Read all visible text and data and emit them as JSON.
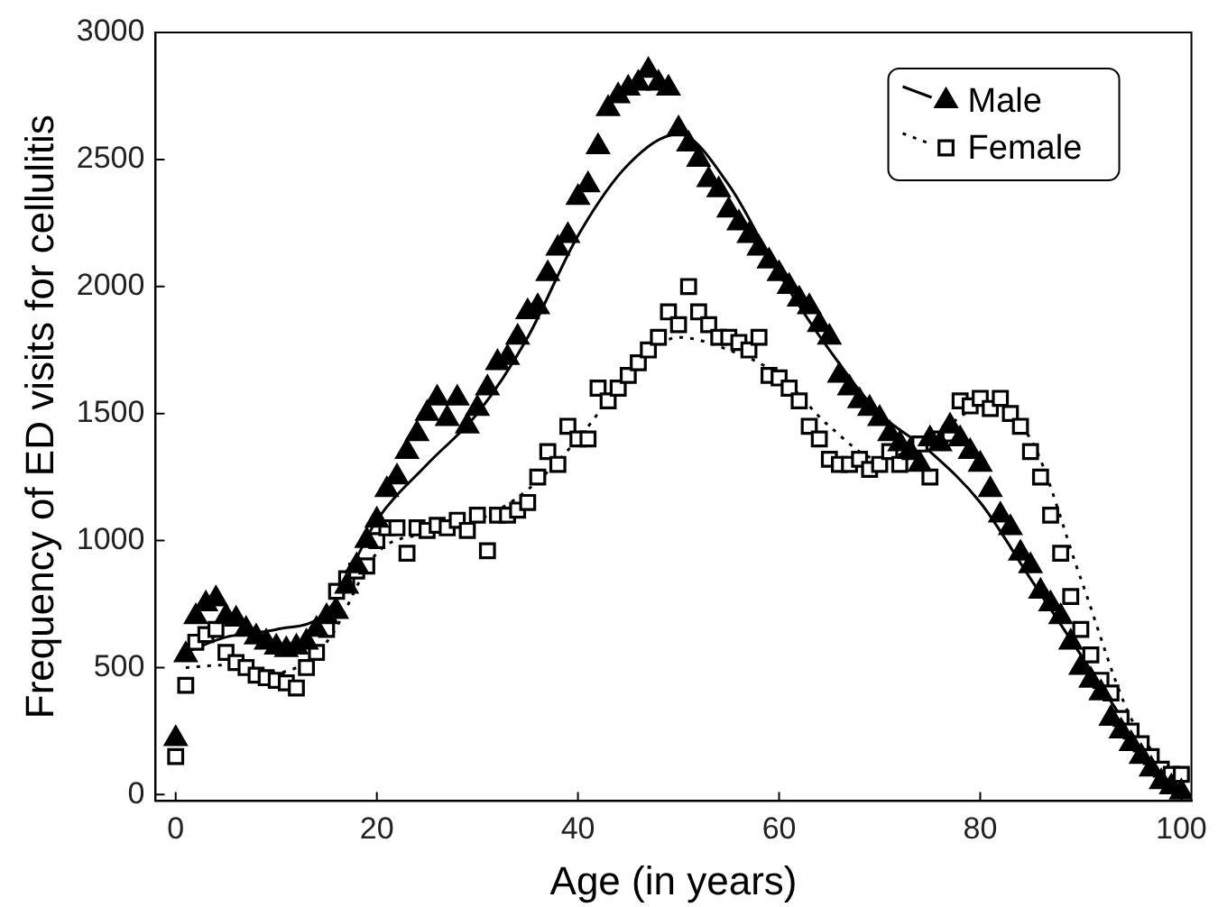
{
  "chart_data": {
    "type": "scatter",
    "xlabel": "Age (in years)",
    "ylabel": "Frequency of ED visits for cellulitis",
    "xlim": [
      -2,
      101
    ],
    "ylim": [
      -25,
      3000
    ],
    "xticks": [
      0,
      20,
      40,
      60,
      80,
      100
    ],
    "yticks": [
      0,
      500,
      1000,
      1500,
      2000,
      2500,
      3000
    ],
    "grid": false,
    "legend": "top right",
    "series": [
      {
        "name": "Male",
        "marker": "triangle",
        "color": "#000000",
        "x": [
          0,
          1,
          2,
          3,
          4,
          5,
          6,
          7,
          8,
          9,
          10,
          11,
          12,
          13,
          14,
          15,
          16,
          17,
          18,
          19,
          20,
          21,
          22,
          23,
          24,
          25,
          26,
          27,
          28,
          29,
          30,
          31,
          32,
          33,
          34,
          35,
          36,
          37,
          38,
          39,
          40,
          41,
          42,
          43,
          44,
          45,
          46,
          47,
          48,
          49,
          50,
          51,
          52,
          53,
          54,
          55,
          56,
          57,
          58,
          59,
          60,
          61,
          62,
          63,
          64,
          65,
          66,
          67,
          68,
          69,
          70,
          71,
          72,
          73,
          74,
          75,
          76,
          77,
          78,
          79,
          80,
          81,
          82,
          83,
          84,
          85,
          86,
          87,
          88,
          89,
          90,
          91,
          92,
          93,
          94,
          95,
          96,
          97,
          98,
          99,
          100
        ],
        "values": [
          220,
          550,
          700,
          750,
          770,
          700,
          690,
          650,
          620,
          600,
          580,
          570,
          580,
          600,
          650,
          700,
          720,
          820,
          900,
          1000,
          1080,
          1200,
          1250,
          1350,
          1420,
          1500,
          1560,
          1480,
          1560,
          1450,
          1520,
          1600,
          1700,
          1720,
          1800,
          1900,
          1920,
          2050,
          2150,
          2200,
          2350,
          2400,
          2550,
          2700,
          2750,
          2780,
          2800,
          2850,
          2800,
          2780,
          2620,
          2560,
          2500,
          2420,
          2380,
          2300,
          2250,
          2200,
          2150,
          2100,
          2050,
          2000,
          1950,
          1920,
          1850,
          1800,
          1650,
          1600,
          1550,
          1520,
          1480,
          1420,
          1380,
          1350,
          1300,
          1400,
          1380,
          1450,
          1400,
          1350,
          1300,
          1200,
          1100,
          1050,
          950,
          900,
          800,
          750,
          700,
          600,
          500,
          450,
          400,
          300,
          250,
          200,
          150,
          100,
          50,
          30,
          10
        ]
      },
      {
        "name": "Female",
        "marker": "square",
        "color": "#000000",
        "x": [
          0,
          1,
          2,
          3,
          4,
          5,
          6,
          7,
          8,
          9,
          10,
          11,
          12,
          13,
          14,
          15,
          16,
          17,
          18,
          19,
          20,
          21,
          22,
          23,
          24,
          25,
          26,
          27,
          28,
          29,
          30,
          31,
          32,
          33,
          34,
          35,
          36,
          37,
          38,
          39,
          40,
          41,
          42,
          43,
          44,
          45,
          46,
          47,
          48,
          49,
          50,
          51,
          52,
          53,
          54,
          55,
          56,
          57,
          58,
          59,
          60,
          61,
          62,
          63,
          64,
          65,
          66,
          67,
          68,
          69,
          70,
          71,
          72,
          73,
          74,
          75,
          76,
          77,
          78,
          79,
          80,
          81,
          82,
          83,
          84,
          85,
          86,
          87,
          88,
          89,
          90,
          91,
          92,
          93,
          94,
          95,
          96,
          97,
          98,
          99,
          100
        ],
        "values": [
          150,
          430,
          600,
          630,
          650,
          560,
          520,
          500,
          470,
          460,
          450,
          440,
          420,
          500,
          560,
          650,
          800,
          850,
          880,
          900,
          1000,
          1050,
          1050,
          950,
          1050,
          1040,
          1060,
          1050,
          1080,
          1040,
          1100,
          960,
          1100,
          1100,
          1120,
          1150,
          1250,
          1350,
          1300,
          1450,
          1400,
          1400,
          1600,
          1550,
          1600,
          1650,
          1700,
          1750,
          1800,
          1900,
          1850,
          2000,
          1900,
          1850,
          1800,
          1800,
          1780,
          1750,
          1800,
          1650,
          1640,
          1600,
          1550,
          1450,
          1400,
          1320,
          1300,
          1300,
          1320,
          1280,
          1300,
          1350,
          1300,
          1350,
          1380,
          1250,
          1400,
          1420,
          1550,
          1530,
          1560,
          1520,
          1560,
          1500,
          1450,
          1350,
          1250,
          1100,
          950,
          780,
          650,
          550,
          450,
          400,
          300,
          250,
          200,
          150,
          100,
          80,
          80
        ]
      },
      {
        "type": "line",
        "marker": "none",
        "line_style": "solid",
        "color": "#000000",
        "x": [
          1,
          5,
          10,
          15,
          20,
          25,
          30,
          35,
          40,
          45,
          50,
          55,
          60,
          65,
          70,
          75,
          80,
          85,
          90,
          95,
          100
        ],
        "values": [
          560,
          620,
          650,
          720,
          1080,
          1300,
          1500,
          1800,
          2200,
          2480,
          2600,
          2400,
          2050,
          1750,
          1500,
          1350,
          1150,
          850,
          550,
          250,
          0
        ]
      },
      {
        "type": "line",
        "marker": "none",
        "line_style": "dotted",
        "color": "#000000",
        "x": [
          1,
          5,
          10,
          15,
          20,
          25,
          30,
          35,
          40,
          45,
          50,
          55,
          60,
          65,
          70,
          75,
          80,
          85,
          90,
          95,
          100
        ],
        "values": [
          500,
          510,
          480,
          600,
          950,
          1030,
          1080,
          1200,
          1400,
          1650,
          1800,
          1750,
          1650,
          1450,
          1320,
          1400,
          1520,
          1400,
          850,
          300,
          50
        ]
      }
    ]
  }
}
